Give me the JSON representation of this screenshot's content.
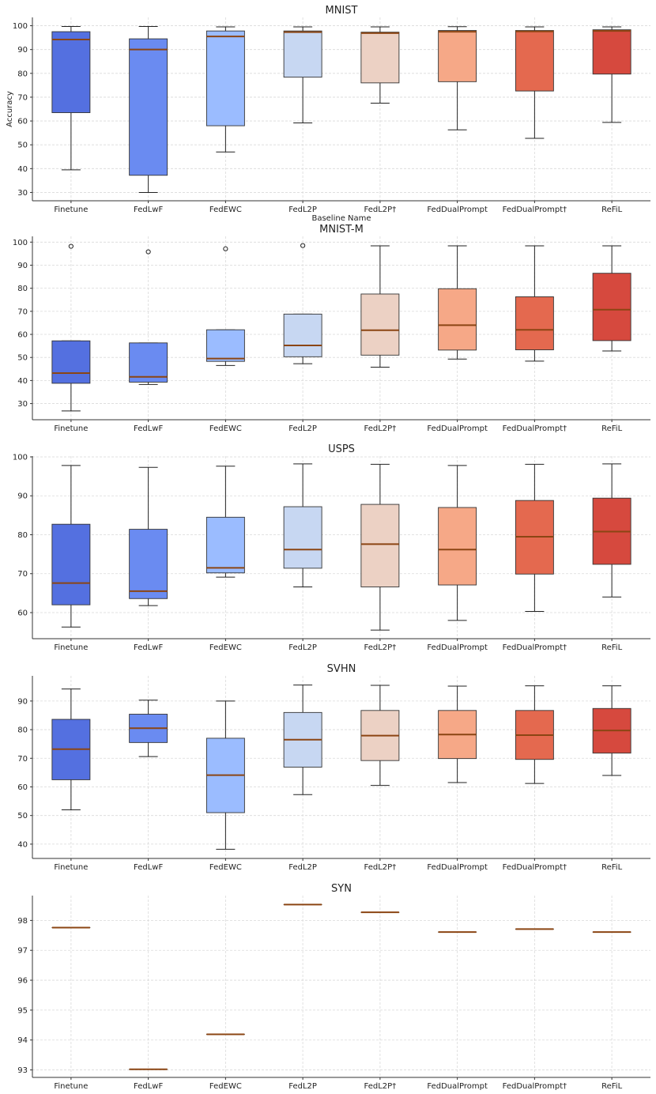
{
  "colors": [
    "#5470e0",
    "#6a8bf1",
    "#9bbcff",
    "#c7d7f2",
    "#ecd1c4",
    "#f6a887",
    "#e4694f",
    "#d6493e"
  ],
  "median_color": "#8B4513",
  "chart_data": [
    {
      "type": "box",
      "title": "MNIST",
      "xlabel": "Baseline Name",
      "ylabel": "Accuracy",
      "categories": [
        "Finetune",
        "FedLwF",
        "FedEWC",
        "FedL2P",
        "FedL2P†",
        "FedDualPrompt",
        "FedDualPrompt†",
        "ReFiL"
      ],
      "ylim": [
        26.5,
        103.5
      ],
      "yticks": [
        30,
        40,
        50,
        60,
        70,
        80,
        90,
        100
      ],
      "boxes": [
        {
          "min": 39.5,
          "q1": 63.5,
          "median": 94.2,
          "q3": 97.5,
          "max": 99.7,
          "fliers": []
        },
        {
          "min": 30.0,
          "q1": 37.2,
          "median": 90.0,
          "q3": 94.5,
          "max": 99.7,
          "fliers": []
        },
        {
          "min": 47.0,
          "q1": 58.0,
          "median": 95.5,
          "q3": 97.8,
          "max": 99.5,
          "fliers": []
        },
        {
          "min": 59.2,
          "q1": 78.4,
          "median": 97.3,
          "q3": 97.8,
          "max": 99.5,
          "fliers": []
        },
        {
          "min": 67.5,
          "q1": 76.0,
          "median": 96.9,
          "q3": 97.3,
          "max": 99.5,
          "fliers": []
        },
        {
          "min": 56.3,
          "q1": 76.5,
          "median": 97.5,
          "q3": 98.0,
          "max": 99.6,
          "fliers": []
        },
        {
          "min": 52.7,
          "q1": 72.6,
          "median": 97.6,
          "q3": 98.0,
          "max": 99.5,
          "fliers": []
        },
        {
          "min": 59.4,
          "q1": 79.7,
          "median": 97.8,
          "q3": 98.3,
          "max": 99.5,
          "fliers": []
        }
      ]
    },
    {
      "type": "box",
      "title": "MNIST-M",
      "xlabel": "",
      "ylabel": "",
      "categories": [
        "Finetune",
        "FedLwF",
        "FedEWC",
        "FedL2P",
        "FedL2P†",
        "FedDualPrompt",
        "FedDualPrompt†",
        "ReFiL"
      ],
      "ylim": [
        23.0,
        102.5
      ],
      "yticks": [
        30,
        40,
        50,
        60,
        70,
        80,
        90,
        100
      ],
      "boxes": [
        {
          "min": 26.8,
          "q1": 38.8,
          "median": 43.2,
          "q3": 57.2,
          "max": 57.2,
          "fliers": [
            98.2
          ]
        },
        {
          "min": 38.3,
          "q1": 39.3,
          "median": 41.6,
          "q3": 56.3,
          "max": 56.3,
          "fliers": [
            95.8
          ]
        },
        {
          "min": 46.5,
          "q1": 48.3,
          "median": 49.5,
          "q3": 62.0,
          "max": 62.0,
          "fliers": [
            97.1
          ]
        },
        {
          "min": 47.3,
          "q1": 50.3,
          "median": 55.2,
          "q3": 68.8,
          "max": 68.8,
          "fliers": [
            98.5
          ]
        },
        {
          "min": 45.8,
          "q1": 51.0,
          "median": 61.8,
          "q3": 77.5,
          "max": 98.4,
          "fliers": []
        },
        {
          "min": 49.3,
          "q1": 53.2,
          "median": 64.0,
          "q3": 79.8,
          "max": 98.4,
          "fliers": []
        },
        {
          "min": 48.4,
          "q1": 53.3,
          "median": 62.0,
          "q3": 76.3,
          "max": 98.4,
          "fliers": []
        },
        {
          "min": 52.8,
          "q1": 57.3,
          "median": 70.7,
          "q3": 86.5,
          "max": 98.4,
          "fliers": []
        }
      ]
    },
    {
      "type": "box",
      "title": "USPS",
      "xlabel": "",
      "ylabel": "",
      "categories": [
        "Finetune",
        "FedLwF",
        "FedEWC",
        "FedL2P",
        "FedL2P†",
        "FedDualPrompt",
        "FedDualPrompt†",
        "ReFiL"
      ],
      "ylim": [
        53.3,
        100.2
      ],
      "yticks": [
        60,
        70,
        80,
        90,
        100
      ],
      "boxes": [
        {
          "min": 56.3,
          "q1": 62.0,
          "median": 67.6,
          "q3": 82.7,
          "max": 97.8,
          "fliers": []
        },
        {
          "min": 61.8,
          "q1": 63.6,
          "median": 65.5,
          "q3": 81.4,
          "max": 97.3,
          "fliers": []
        },
        {
          "min": 69.1,
          "q1": 70.2,
          "median": 71.5,
          "q3": 84.5,
          "max": 97.6,
          "fliers": []
        },
        {
          "min": 66.6,
          "q1": 71.4,
          "median": 76.2,
          "q3": 87.2,
          "max": 98.2,
          "fliers": []
        },
        {
          "min": 55.5,
          "q1": 66.6,
          "median": 77.6,
          "q3": 87.8,
          "max": 98.1,
          "fliers": []
        },
        {
          "min": 58.0,
          "q1": 67.1,
          "median": 76.2,
          "q3": 87.0,
          "max": 97.8,
          "fliers": []
        },
        {
          "min": 60.3,
          "q1": 69.9,
          "median": 79.5,
          "q3": 88.8,
          "max": 98.1,
          "fliers": []
        },
        {
          "min": 64.0,
          "q1": 72.4,
          "median": 80.8,
          "q3": 89.4,
          "max": 98.2,
          "fliers": []
        }
      ]
    },
    {
      "type": "box",
      "title": "SVHN",
      "xlabel": "",
      "ylabel": "",
      "categories": [
        "Finetune",
        "FedLwF",
        "FedEWC",
        "FedL2P",
        "FedL2P†",
        "FedDualPrompt",
        "FedDualPrompt†",
        "ReFiL"
      ],
      "ylim": [
        35.0,
        98.8
      ],
      "yticks": [
        40,
        50,
        60,
        70,
        80,
        90
      ],
      "boxes": [
        {
          "min": 52.0,
          "q1": 62.5,
          "median": 73.2,
          "q3": 83.6,
          "max": 94.2,
          "fliers": []
        },
        {
          "min": 70.6,
          "q1": 75.5,
          "median": 80.5,
          "q3": 85.4,
          "max": 90.3,
          "fliers": []
        },
        {
          "min": 38.2,
          "q1": 51.0,
          "median": 64.1,
          "q3": 77.0,
          "max": 90.0,
          "fliers": []
        },
        {
          "min": 57.3,
          "q1": 66.9,
          "median": 76.5,
          "q3": 86.0,
          "max": 95.6,
          "fliers": []
        },
        {
          "min": 60.5,
          "q1": 69.2,
          "median": 77.9,
          "q3": 86.7,
          "max": 95.5,
          "fliers": []
        },
        {
          "min": 61.5,
          "q1": 69.9,
          "median": 78.3,
          "q3": 86.7,
          "max": 95.2,
          "fliers": []
        },
        {
          "min": 61.2,
          "q1": 69.6,
          "median": 78.1,
          "q3": 86.7,
          "max": 95.3,
          "fliers": []
        },
        {
          "min": 64.0,
          "q1": 71.8,
          "median": 79.7,
          "q3": 87.4,
          "max": 95.3,
          "fliers": []
        }
      ]
    },
    {
      "type": "box",
      "title": "SYN",
      "xlabel": "",
      "ylabel": "",
      "categories": [
        "Finetune",
        "FedLwF",
        "FedEWC",
        "FedL2P",
        "FedL2P†",
        "FedDualPrompt",
        "FedDualPrompt†",
        "ReFiL"
      ],
      "ylim": [
        92.75,
        98.83
      ],
      "yticks": [
        93,
        94,
        95,
        96,
        97,
        98
      ],
      "boxes": [
        {
          "min": 97.76,
          "q1": 97.76,
          "median": 97.76,
          "q3": 97.76,
          "max": 97.76,
          "fliers": []
        },
        {
          "min": 93.02,
          "q1": 93.02,
          "median": 93.02,
          "q3": 93.02,
          "max": 93.02,
          "fliers": []
        },
        {
          "min": 94.19,
          "q1": 94.19,
          "median": 94.19,
          "q3": 94.19,
          "max": 94.19,
          "fliers": []
        },
        {
          "min": 98.53,
          "q1": 98.53,
          "median": 98.53,
          "q3": 98.53,
          "max": 98.53,
          "fliers": []
        },
        {
          "min": 98.27,
          "q1": 98.27,
          "median": 98.27,
          "q3": 98.27,
          "max": 98.27,
          "fliers": []
        },
        {
          "min": 97.61,
          "q1": 97.61,
          "median": 97.61,
          "q3": 97.61,
          "max": 97.61,
          "fliers": []
        },
        {
          "min": 97.71,
          "q1": 97.71,
          "median": 97.71,
          "q3": 97.71,
          "max": 97.71,
          "fliers": []
        },
        {
          "min": 97.61,
          "q1": 97.61,
          "median": 97.61,
          "q3": 97.61,
          "max": 97.61,
          "fliers": []
        }
      ]
    }
  ]
}
